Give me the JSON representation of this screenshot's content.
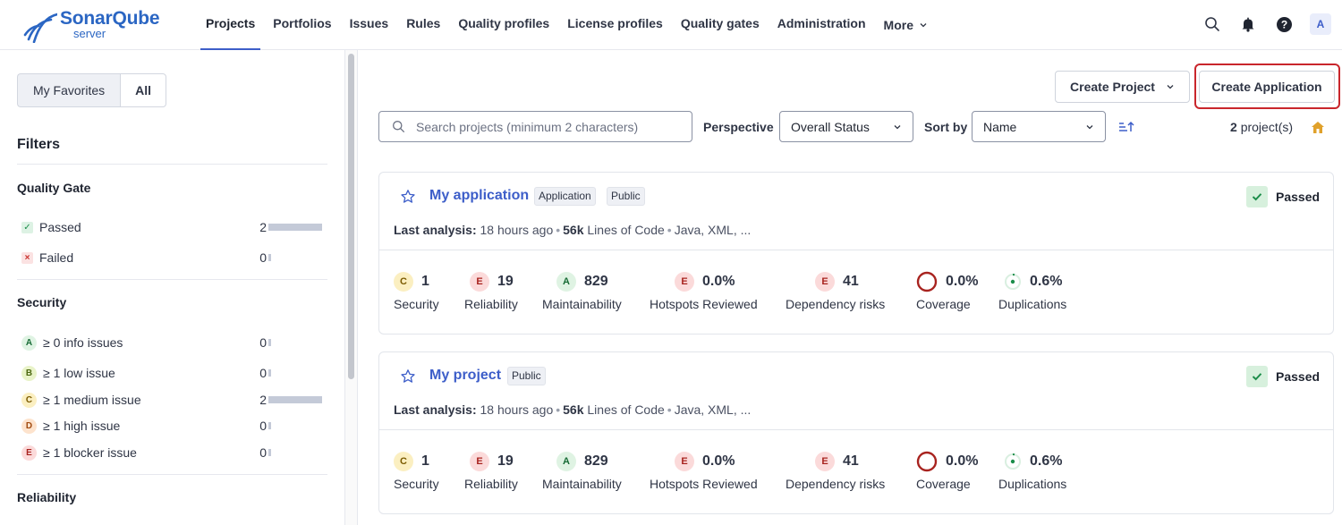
{
  "brand": {
    "name": "SonarQube",
    "sub": "server",
    "color": "#2b66c3"
  },
  "nav": {
    "items": [
      {
        "label": "Projects",
        "active": true
      },
      {
        "label": "Portfolios"
      },
      {
        "label": "Issues"
      },
      {
        "label": "Rules"
      },
      {
        "label": "Quality profiles"
      },
      {
        "label": "License profiles"
      },
      {
        "label": "Quality gates"
      },
      {
        "label": "Administration"
      }
    ],
    "more": "More",
    "avatar": "A"
  },
  "sidebar": {
    "toggle": {
      "favorites": "My Favorites",
      "all": "All"
    },
    "filters_title": "Filters",
    "quality_gate": {
      "title": "Quality Gate",
      "passed": {
        "label": "Passed",
        "count": "2"
      },
      "failed": {
        "label": "Failed",
        "count": "0"
      }
    },
    "security": {
      "title": "Security",
      "rows": [
        {
          "grade": "A",
          "label": "≥ 0 info issues",
          "count": "0"
        },
        {
          "grade": "B",
          "label": "≥ 1 low issue",
          "count": "0"
        },
        {
          "grade": "C",
          "label": "≥ 1 medium issue",
          "count": "2"
        },
        {
          "grade": "D",
          "label": "≥ 1 high issue",
          "count": "0"
        },
        {
          "grade": "E",
          "label": "≥ 1 blocker issue",
          "count": "0"
        }
      ]
    },
    "reliability_title": "Reliability"
  },
  "toolbar": {
    "create_project": "Create Project",
    "create_application": "Create Application",
    "search_placeholder": "Search projects (minimum 2 characters)",
    "perspective_label": "Perspective",
    "perspective_value": "Overall Status",
    "sort_label": "Sort by",
    "sort_value": "Name",
    "count_num": "2",
    "count_suffix": "project(s)"
  },
  "projects": [
    {
      "name": "My application",
      "tags": [
        "Application",
        "Public"
      ],
      "status": "Passed",
      "meta": {
        "last_label": "Last analysis:",
        "last_value": "18 hours ago",
        "loc": "56k",
        "loc_label": "Lines of Code",
        "langs": "Java, XML, ..."
      },
      "metrics": {
        "security": {
          "grade": "C",
          "value": "1",
          "label": "Security"
        },
        "reliability": {
          "grade": "E",
          "value": "19",
          "label": "Reliability"
        },
        "maintainability": {
          "grade": "A",
          "value": "829",
          "label": "Maintainability"
        },
        "hotspots": {
          "grade": "E",
          "value": "0.0%",
          "label": "Hotspots Reviewed"
        },
        "dependency": {
          "grade": "E",
          "value": "41",
          "label": "Dependency risks"
        },
        "coverage": {
          "value": "0.0%",
          "label": "Coverage"
        },
        "duplications": {
          "value": "0.6%",
          "label": "Duplications"
        }
      }
    },
    {
      "name": "My project",
      "tags": [
        "Public"
      ],
      "status": "Passed",
      "meta": {
        "last_label": "Last analysis:",
        "last_value": "18 hours ago",
        "loc": "56k",
        "loc_label": "Lines of Code",
        "langs": "Java, XML, ..."
      },
      "metrics": {
        "security": {
          "grade": "C",
          "value": "1",
          "label": "Security"
        },
        "reliability": {
          "grade": "E",
          "value": "19",
          "label": "Reliability"
        },
        "maintainability": {
          "grade": "A",
          "value": "829",
          "label": "Maintainability"
        },
        "hotspots": {
          "grade": "E",
          "value": "0.0%",
          "label": "Hotspots Reviewed"
        },
        "dependency": {
          "grade": "E",
          "value": "41",
          "label": "Dependency risks"
        },
        "coverage": {
          "value": "0.0%",
          "label": "Coverage"
        },
        "duplications": {
          "value": "0.6%",
          "label": "Duplications"
        }
      }
    }
  ],
  "icons": {
    "search": "search-icon",
    "notifications": "bell-icon",
    "help": "help-icon",
    "star": "star-icon",
    "home": "home-icon",
    "sort_direction": "sort-ascending-icon"
  },
  "colors": {
    "accent": "#3d5ec9",
    "passed": "#1c8d4a",
    "highlight": "#c9262c"
  }
}
